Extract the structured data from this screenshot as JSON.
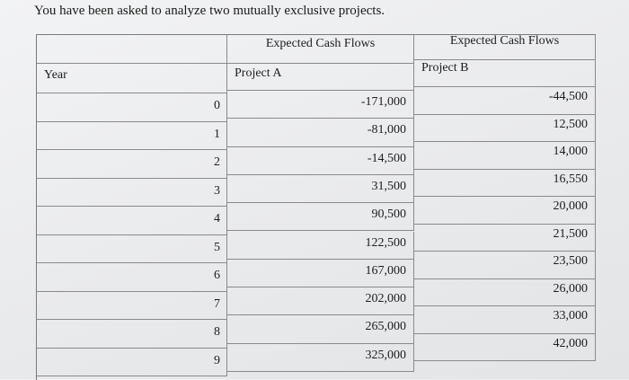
{
  "prompt": "You have been asked to analyze two mutually exclusive projects.",
  "table": {
    "header_a": "Expected Cash Flows",
    "header_b": "Expected Cash Flows",
    "year_label": "Year",
    "project_a_label": "Project A",
    "project_b_label": "Project B",
    "rows": [
      {
        "year": "0",
        "a": "-171,000",
        "b": "-44,500"
      },
      {
        "year": "1",
        "a": "-81,000",
        "b": "12,500"
      },
      {
        "year": "2",
        "a": "-14,500",
        "b": "14,000"
      },
      {
        "year": "3",
        "a": "31,500",
        "b": "16,550"
      },
      {
        "year": "4",
        "a": "90,500",
        "b": "20,000"
      },
      {
        "year": "5",
        "a": "122,500",
        "b": "21,500"
      },
      {
        "year": "6",
        "a": "167,000",
        "b": "23,500"
      },
      {
        "year": "7",
        "a": "202,000",
        "b": "26,000"
      },
      {
        "year": "8",
        "a": "265,000",
        "b": "33,000"
      },
      {
        "year": "9",
        "a": "325,000",
        "b": "42,000"
      }
    ]
  }
}
